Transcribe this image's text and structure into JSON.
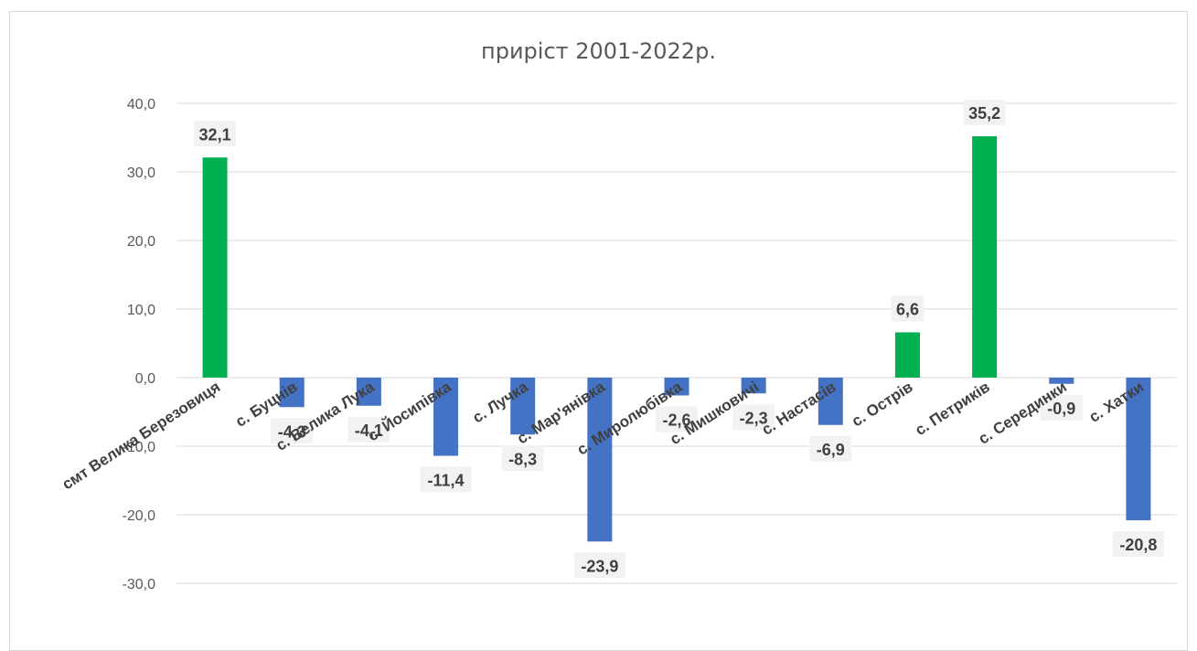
{
  "chart_data": {
    "type": "bar",
    "title": "приріст 2001-2022р.",
    "xlabel": "",
    "ylabel": "",
    "ylim": [
      -30,
      40
    ],
    "yticks": [
      "40,0",
      "30,0",
      "20,0",
      "10,0",
      "0,0",
      "-10,0",
      "-20,0",
      "-30,0"
    ],
    "ytick_values": [
      40,
      30,
      20,
      10,
      0,
      -10,
      -20,
      -30
    ],
    "grid": true,
    "legend": "none",
    "categories": [
      "смт Велика Березовиця",
      "с. Буцнів",
      "с. Велика Лука",
      "с. Йосипівка",
      "с. Лучка",
      "с. Мар'янівка",
      "с. Миролюбівка",
      "с. Мишковичі",
      "с. Настасів",
      "с. Острів",
      "с. Петриків",
      "с. Серединки",
      "с. Хатки"
    ],
    "values": [
      32.1,
      -4.3,
      -4.1,
      -11.4,
      -8.3,
      -23.9,
      -2.6,
      -2.3,
      -6.9,
      6.6,
      35.2,
      -0.9,
      -20.8
    ],
    "data_labels": [
      "32,1",
      "-4,3",
      "-4,1",
      "-11,4",
      "-8,3",
      "-23,9",
      "-2,6",
      "-2,3",
      "-6,9",
      "6,6",
      "35,2",
      "-0,9",
      "-20,8"
    ],
    "colors": {
      "positive": "#00b050",
      "negative": "#4472c4",
      "grid": "#d9d9d9",
      "label_bg": "#f2f2f2"
    }
  }
}
